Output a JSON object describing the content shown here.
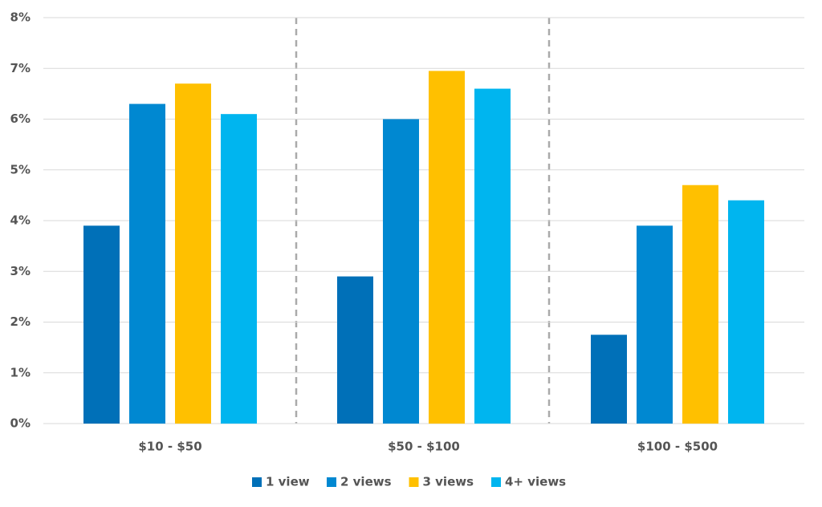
{
  "chart_data": {
    "type": "bar",
    "categories": [
      "$10 - $50",
      "$50 - $100",
      "$100 - $500"
    ],
    "series": [
      {
        "name": "1 view",
        "color": "#0070b8",
        "values": [
          3.9,
          2.9,
          1.75
        ]
      },
      {
        "name": "2 views",
        "color": "#0088d1",
        "values": [
          6.3,
          6.0,
          3.9
        ]
      },
      {
        "name": "3 views",
        "color": "#ffc000",
        "values": [
          6.7,
          6.95,
          4.7
        ]
      },
      {
        "name": "4+ views",
        "color": "#00b5ef",
        "values": [
          6.1,
          6.6,
          4.4
        ]
      }
    ],
    "ylim": [
      0,
      8
    ],
    "yticks": [
      {
        "value": 0,
        "label": "0%"
      },
      {
        "value": 1,
        "label": "1%"
      },
      {
        "value": 2,
        "label": "2%"
      },
      {
        "value": 3,
        "label": "3%"
      },
      {
        "value": 4,
        "label": "4%"
      },
      {
        "value": 5,
        "label": "5%"
      },
      {
        "value": 6,
        "label": "6%"
      },
      {
        "value": 7,
        "label": "7%"
      },
      {
        "value": 8,
        "label": "8%"
      }
    ],
    "grid": true,
    "legend": "bottom"
  }
}
